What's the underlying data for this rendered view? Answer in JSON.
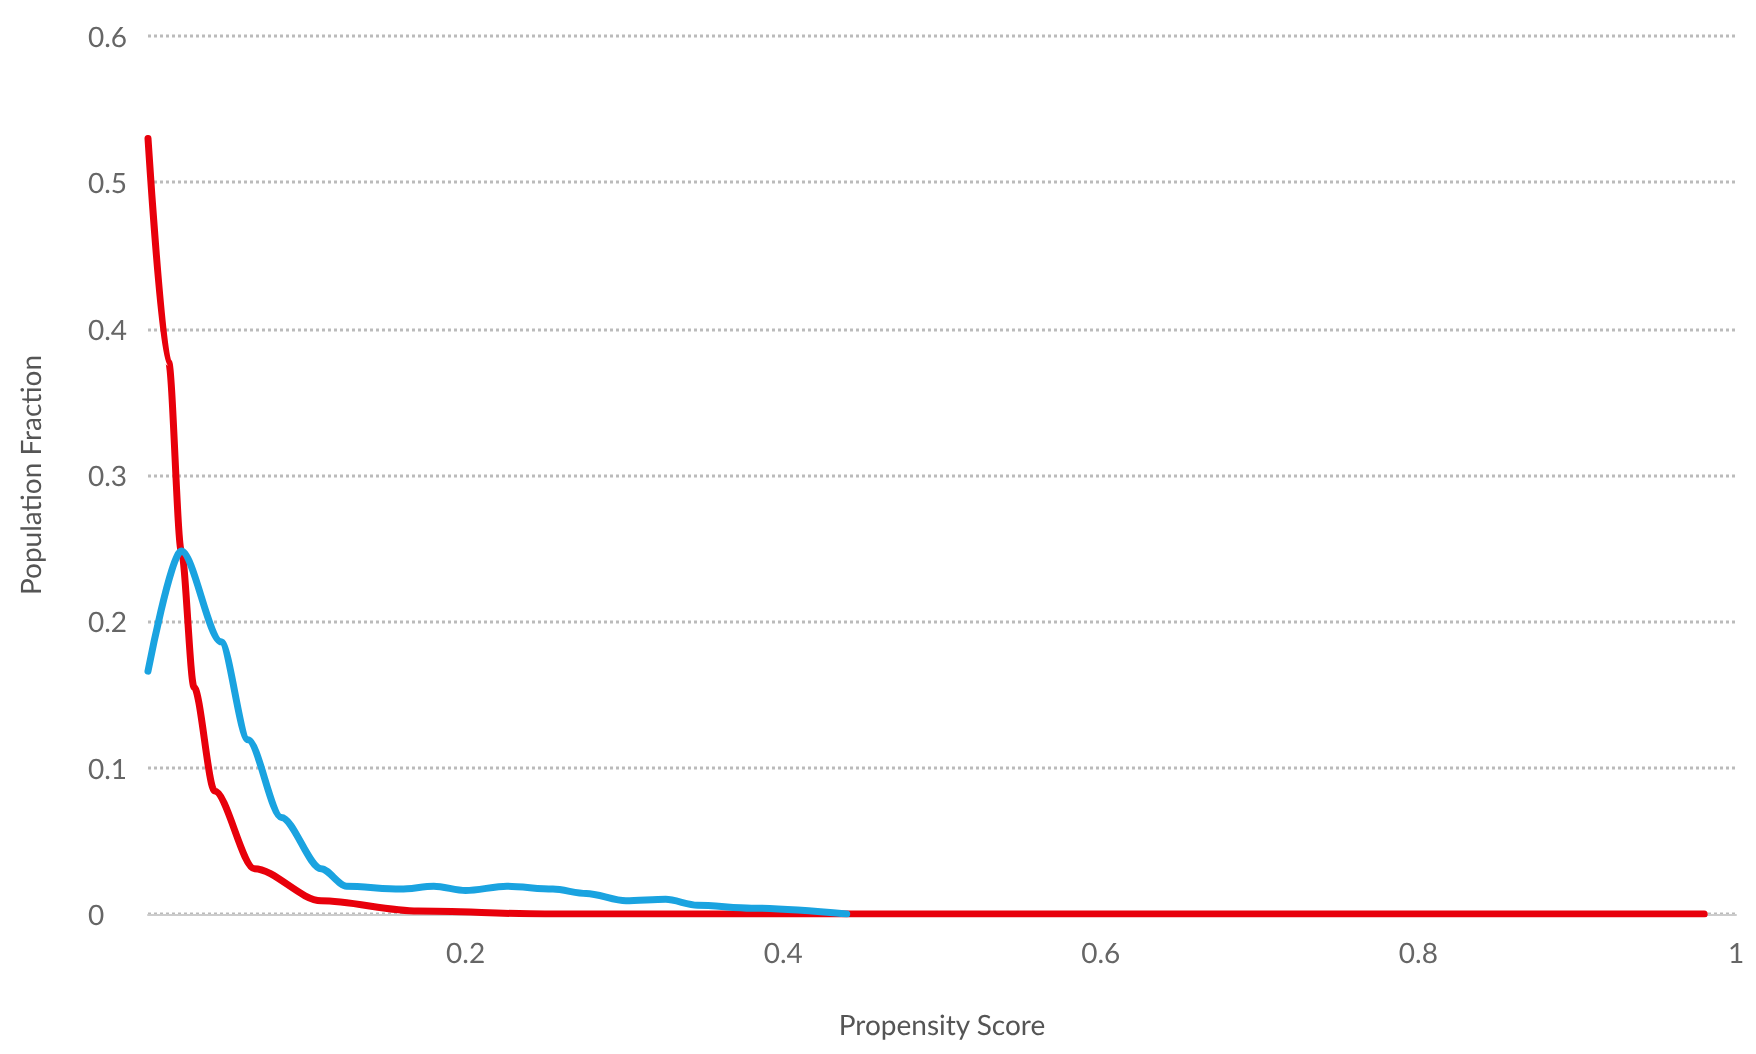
{
  "chart_data": {
    "type": "line",
    "xlabel": "Propensity Score",
    "ylabel": "Population Fraction",
    "xlim": [
      0,
      1
    ],
    "xticks": [
      0.2,
      0.4,
      0.6,
      0.8,
      1
    ],
    "ylim": [
      0,
      0.6
    ],
    "yticks": [
      0,
      0.1,
      0.2,
      0.3,
      0.4,
      0.5,
      0.6
    ],
    "grid": "y",
    "line_style": "solid",
    "marker": "none",
    "series": [
      {
        "color": "#e8000b",
        "x": [
          0,
          0.013,
          0.021,
          0.029,
          0.042,
          0.067,
          0.109,
          0.17,
          0.25,
          0.5,
          0.75,
          0.98
        ],
        "values": [
          0.53,
          0.377,
          0.248,
          0.155,
          0.084,
          0.031,
          0.009,
          0.002,
          0,
          0,
          0,
          0
        ]
      },
      {
        "color": "#1aa3e0",
        "x": [
          0,
          0.021,
          0.046,
          0.063,
          0.084,
          0.109,
          0.125,
          0.159,
          0.18,
          0.2,
          0.226,
          0.255,
          0.276,
          0.301,
          0.326,
          0.346,
          0.38,
          0.44
        ],
        "values": [
          0.166,
          0.248,
          0.186,
          0.119,
          0.066,
          0.031,
          0.019,
          0.017,
          0.019,
          0.016,
          0.019,
          0.017,
          0.014,
          0.009,
          0.01,
          0.006,
          0.004,
          0
        ]
      }
    ]
  }
}
